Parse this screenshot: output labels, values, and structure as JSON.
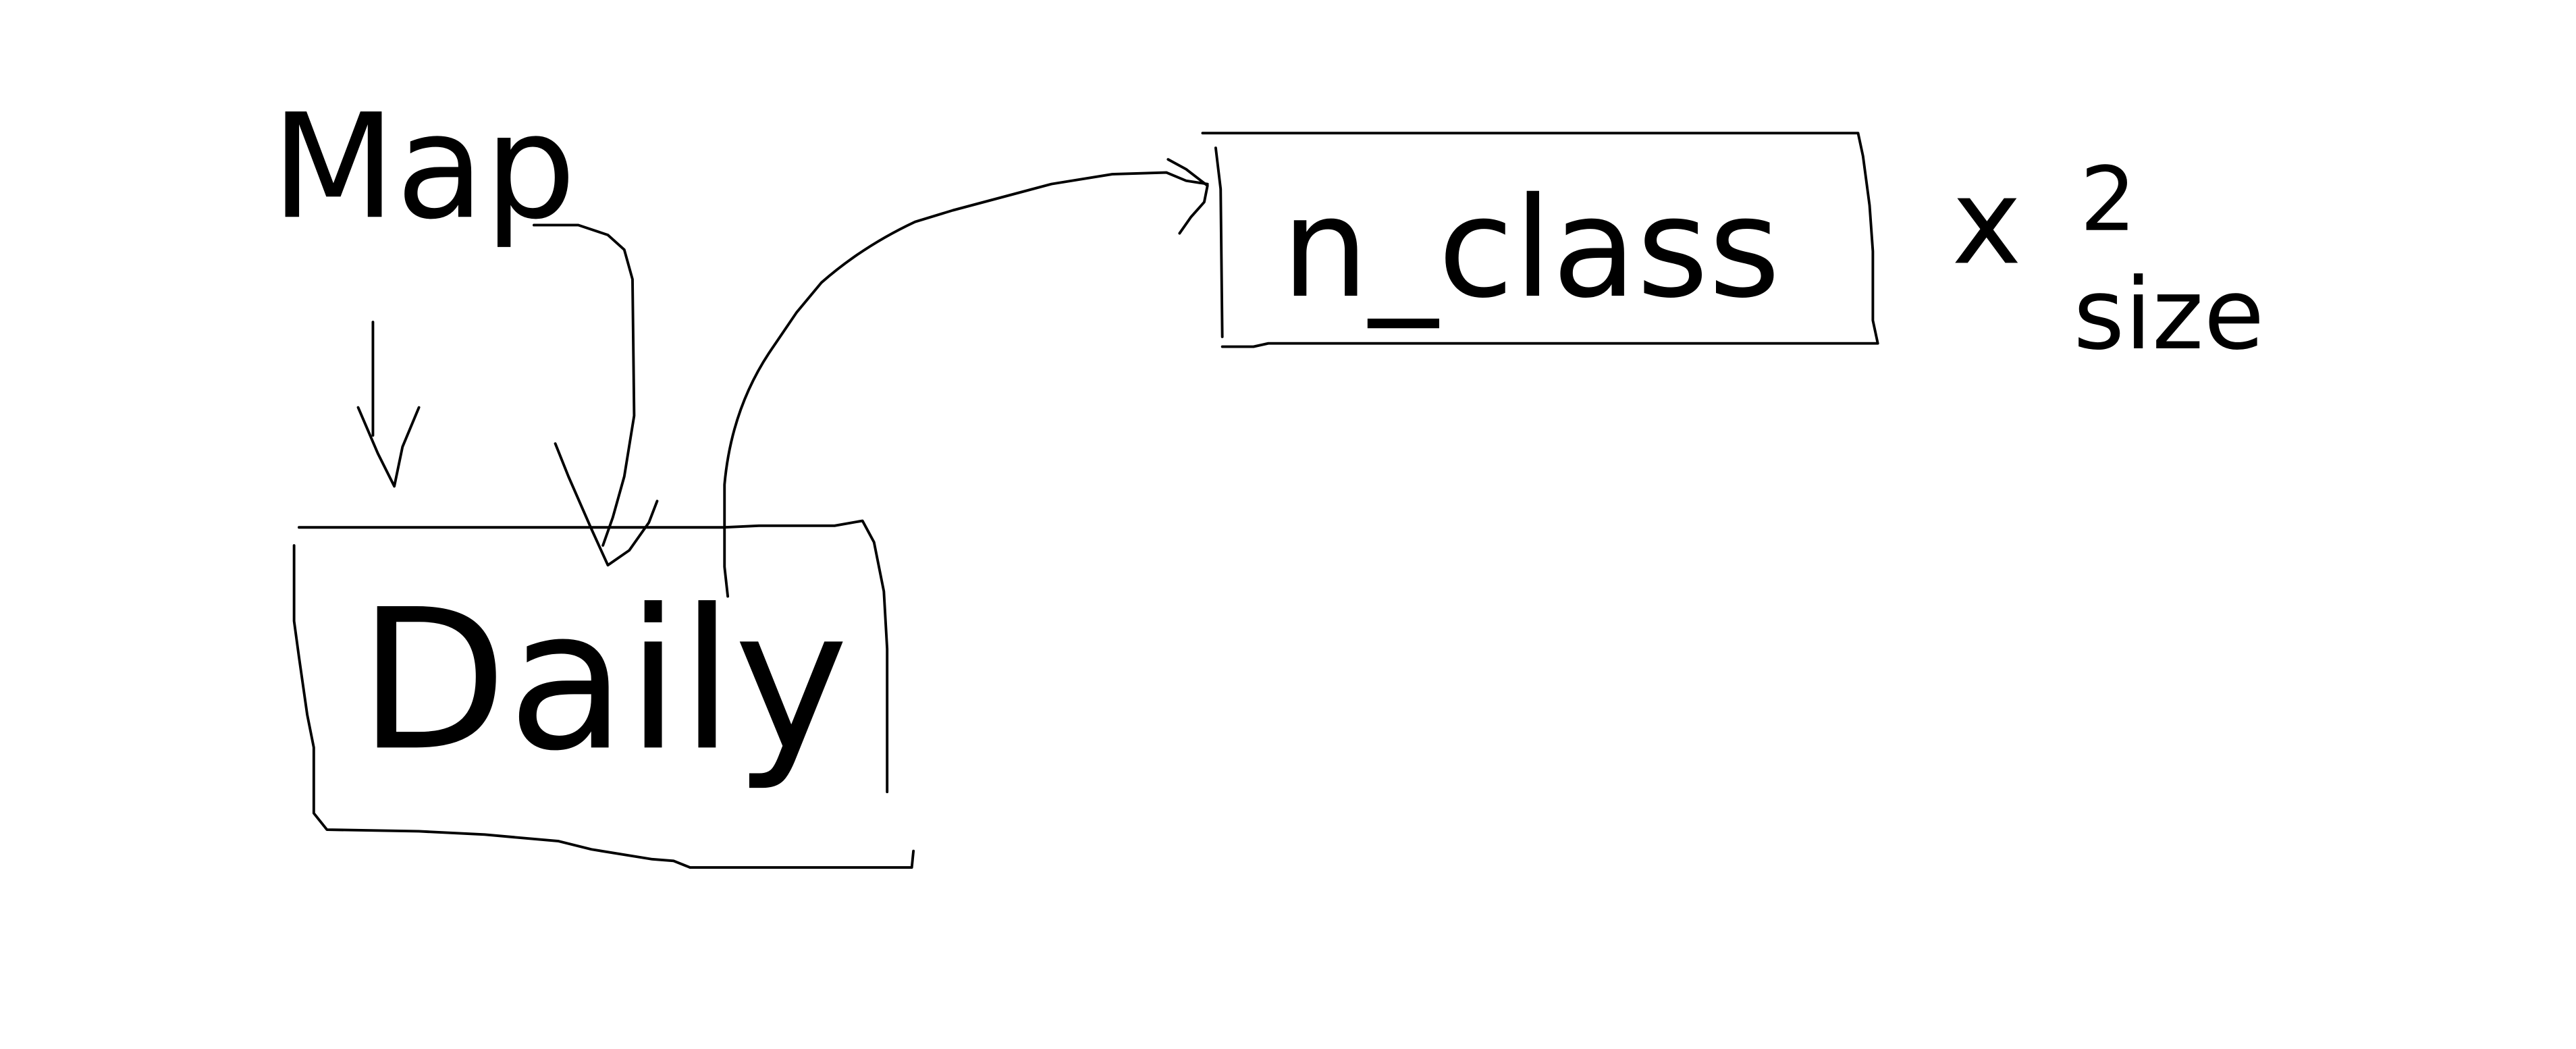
{
  "nodes": [
    {
      "label": "Map"
    },
    {
      "label": "Daily"
    },
    {
      "label": "n_class"
    }
  ],
  "annotations": [
    "x",
    "2",
    "size"
  ]
}
